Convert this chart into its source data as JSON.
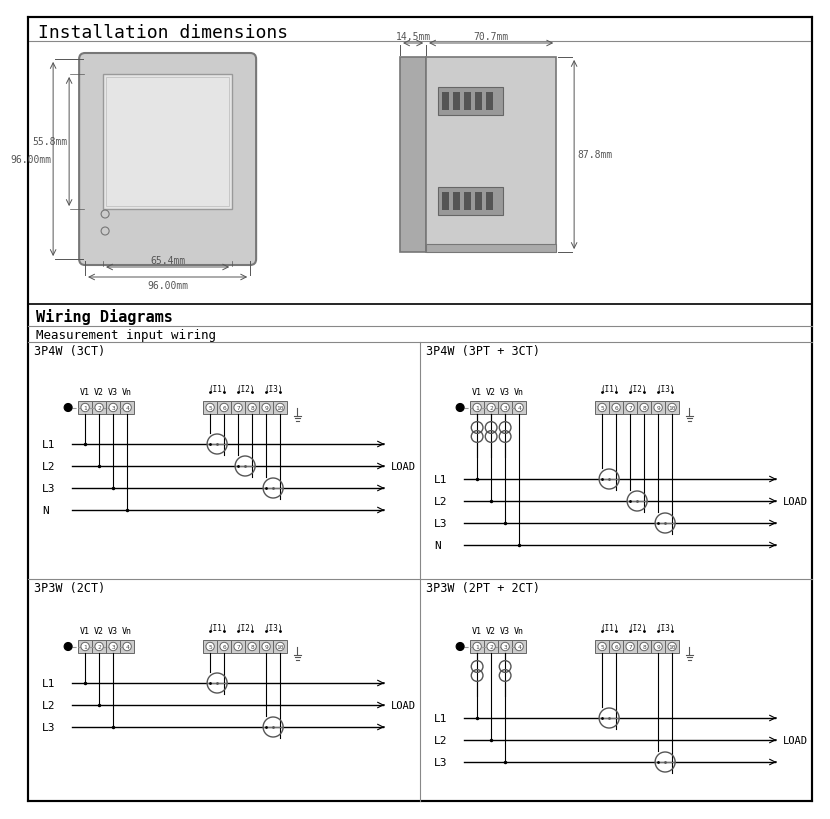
{
  "title": "Installation dimensions",
  "wiring_title": "Wiring Diagrams",
  "meas_title": "Measurement input wiring",
  "bg_color": "#ffffff",
  "dim_color": "#555555",
  "device_color": "#d8d8d8",
  "dim1_w": "96.00mm",
  "dim1_h": "96.00mm",
  "dim1_inner_w": "65.4mm",
  "dim1_inner_h": "55.8mm",
  "dim2_w": "70.7mm",
  "dim2_side": "14.5mm",
  "dim2_h": "87.8mm",
  "label_3p4w_3ct": "3P4W (3CT)",
  "label_3p4w_3pt3ct": "3P4W (3PT + 3CT)",
  "label_3p3w_2ct": "3P3W (2CT)",
  "label_3p3w_2pt2ct": "3P3W (2PT + 2CT)",
  "load_label": "LOAD",
  "line_labels_4w": [
    "L1",
    "L2",
    "L3",
    "N"
  ],
  "line_labels_3w": [
    "L1",
    "L2",
    "L3"
  ],
  "v_labels": [
    "V1",
    "V2",
    "V3",
    "Vn"
  ],
  "i_labels": [
    "(I1)",
    "(I2)",
    "(I3)"
  ]
}
